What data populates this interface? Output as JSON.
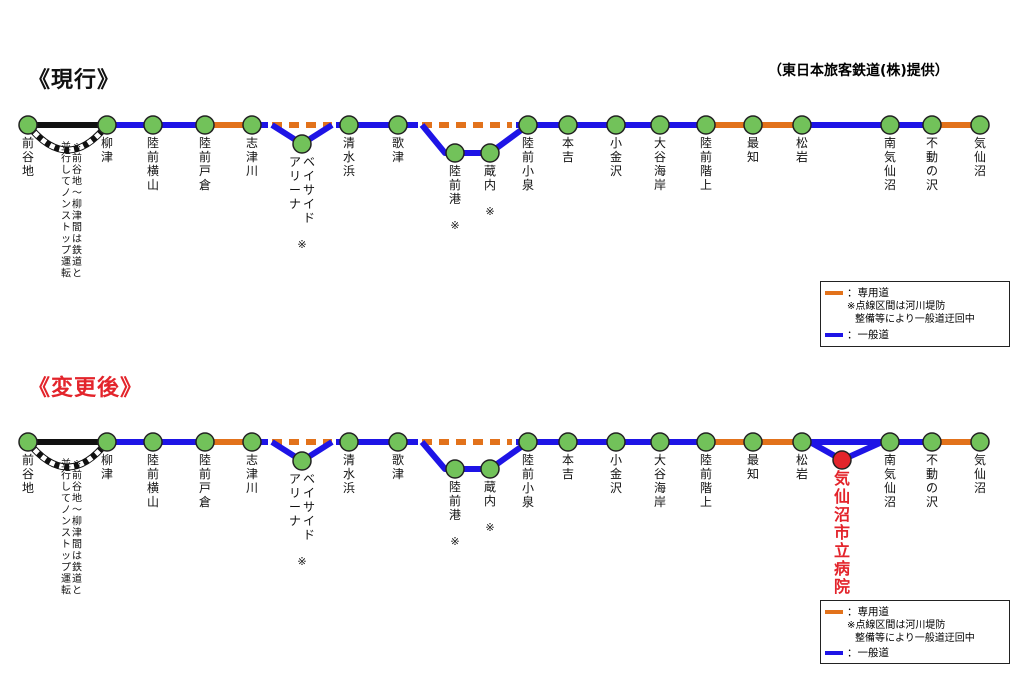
{
  "credit": "（東日本旅客鉄道(株)提供）",
  "colors": {
    "dedicated": "#E2721B",
    "general": "#1E14E6",
    "station": "#72C25A",
    "newStation": "#E3242B",
    "newTitle": "#E3242B",
    "solid": "#111111"
  },
  "sections": [
    {
      "title": "《現行》",
      "stations": [
        {
          "name": "前谷地"
        },
        {
          "name": "柳津"
        },
        {
          "name": "陸前横山"
        },
        {
          "name": "陸前戸倉"
        },
        {
          "name": "志津川"
        },
        {
          "name": "ベイサイド\nアリーナ",
          "mark": "※"
        },
        {
          "name": "清水浜"
        },
        {
          "name": "歌津"
        },
        {
          "name": "陸前港",
          "mark": "※"
        },
        {
          "name": "蔵内",
          "mark": "※"
        },
        {
          "name": "陸前小泉"
        },
        {
          "name": "本吉"
        },
        {
          "name": "小金沢"
        },
        {
          "name": "大谷海岸"
        },
        {
          "name": "陸前階上"
        },
        {
          "name": "最知"
        },
        {
          "name": "松岩"
        },
        {
          "name": "南気仙沼"
        },
        {
          "name": "不動の沢"
        },
        {
          "name": "気仙沼"
        }
      ],
      "note": "※前谷地～柳津間は鉄道と\n並行してノンストップ運転"
    },
    {
      "title": "《変更後》",
      "stations": [
        {
          "name": "前谷地"
        },
        {
          "name": "柳津"
        },
        {
          "name": "陸前横山"
        },
        {
          "name": "陸前戸倉"
        },
        {
          "name": "志津川"
        },
        {
          "name": "ベイサイド\nアリーナ",
          "mark": "※"
        },
        {
          "name": "清水浜"
        },
        {
          "name": "歌津"
        },
        {
          "name": "陸前港",
          "mark": "※"
        },
        {
          "name": "蔵内",
          "mark": "※"
        },
        {
          "name": "陸前小泉"
        },
        {
          "name": "本吉"
        },
        {
          "name": "小金沢"
        },
        {
          "name": "大谷海岸"
        },
        {
          "name": "陸前階上"
        },
        {
          "name": "最知"
        },
        {
          "name": "松岩"
        },
        {
          "name": "気仙沼市立病院"
        },
        {
          "name": "南気仙沼"
        },
        {
          "name": "不動の沢"
        },
        {
          "name": "気仙沼"
        }
      ],
      "note": "※前谷地～柳津間は鉄道と\n並行してノンストップ運転"
    }
  ],
  "legend": {
    "dedicated_label": "：専用道",
    "note_line1": "※点線区間は河川堤防",
    "note_line2": "整備等により一般道迂回中",
    "general_label": "：一般道"
  }
}
